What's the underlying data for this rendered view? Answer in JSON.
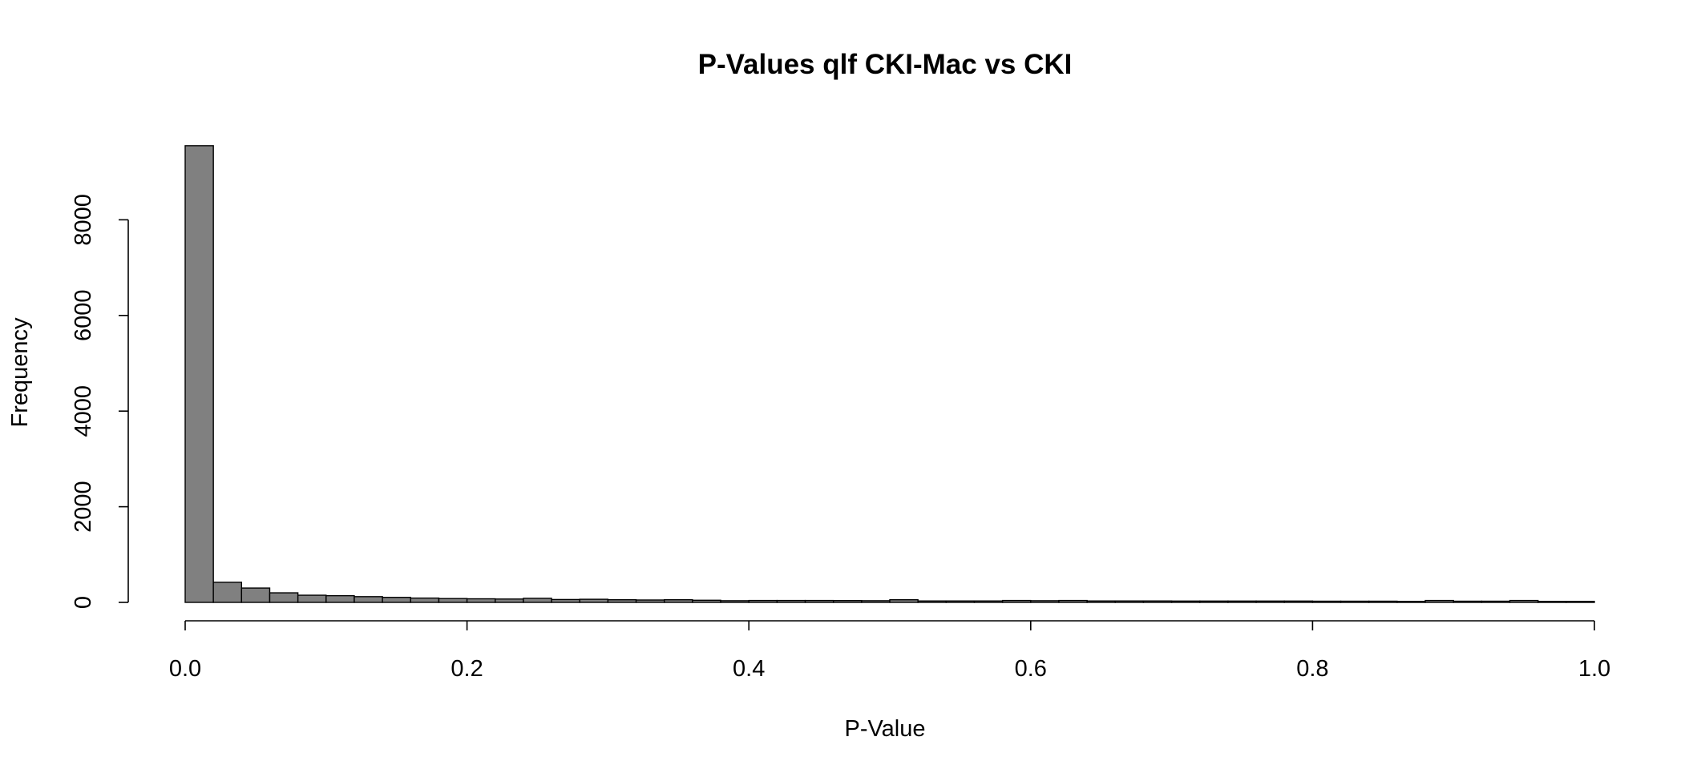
{
  "chart_data": {
    "type": "bar",
    "title": "P-Values qlf CKI-Mac vs CKI",
    "xlabel": "P-Value",
    "ylabel": "Frequency",
    "xlim": [
      0,
      1
    ],
    "ylim": [
      0,
      9600
    ],
    "x_ticks": [
      0,
      0.2,
      0.4,
      0.6,
      0.8,
      1.0
    ],
    "x_tick_labels": [
      "0.0",
      "0.2",
      "0.4",
      "0.6",
      "0.8",
      "1.0"
    ],
    "y_ticks": [
      0,
      2000,
      4000,
      6000,
      8000
    ],
    "y_tick_labels": [
      "0",
      "2000",
      "4000",
      "6000",
      "8000"
    ],
    "bin_width": 0.02,
    "bin_starts": [
      0.0,
      0.02,
      0.04,
      0.06,
      0.08,
      0.1,
      0.12,
      0.14,
      0.16,
      0.18,
      0.2,
      0.22,
      0.24,
      0.26,
      0.28,
      0.3,
      0.32,
      0.34,
      0.36,
      0.38,
      0.4,
      0.42,
      0.44,
      0.46,
      0.48,
      0.5,
      0.52,
      0.54,
      0.56,
      0.58,
      0.6,
      0.62,
      0.64,
      0.66,
      0.68,
      0.7,
      0.72,
      0.74,
      0.76,
      0.78,
      0.8,
      0.82,
      0.84,
      0.86,
      0.88,
      0.9,
      0.92,
      0.94,
      0.96,
      0.98
    ],
    "values": [
      9550,
      420,
      300,
      200,
      150,
      140,
      120,
      105,
      90,
      80,
      75,
      70,
      85,
      60,
      65,
      55,
      50,
      55,
      45,
      35,
      40,
      40,
      40,
      38,
      35,
      55,
      30,
      30,
      30,
      40,
      35,
      40,
      30,
      30,
      30,
      28,
      28,
      28,
      28,
      28,
      25,
      25,
      25,
      20,
      40,
      25,
      25,
      40,
      20,
      20
    ],
    "grid": false,
    "legend": "none",
    "bar_color": "#808080"
  }
}
